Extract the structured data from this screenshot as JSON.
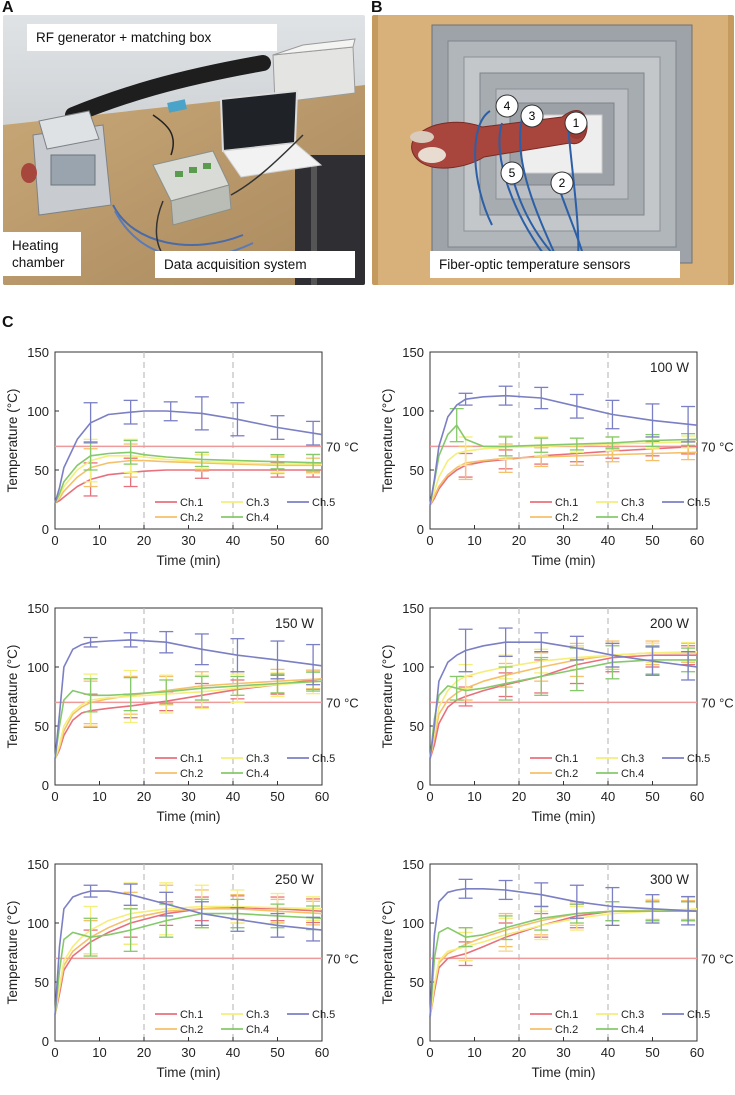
{
  "panels": {
    "a": {
      "letter": "A",
      "callouts": {
        "rf": "RF generator + matching box",
        "chamber": "Heating\nchamber",
        "daq": "Data acquisition system"
      }
    },
    "b": {
      "letter": "B",
      "callouts": {
        "sensors": "Fiber-optic temperature sensors"
      },
      "sensor_numbers": [
        "1",
        "2",
        "3",
        "4",
        "5"
      ]
    },
    "c": {
      "letter": "C"
    }
  },
  "colors": {
    "Ch.1": "#e8707c",
    "Ch.2": "#f5c06a",
    "Ch.3": "#f4ee7a",
    "Ch.4": "#86c96b",
    "Ch.5": "#7b7fc4",
    "threshold": "#ee9a9a",
    "divider": "#bdbdbd"
  },
  "chart_data": [
    {
      "type": "line",
      "title": "",
      "xlabel": "Time (min)",
      "ylabel": "Temperature (°C)",
      "xlim": [
        0,
        60
      ],
      "ylim": [
        0,
        150
      ],
      "xticks": [
        "0",
        "10",
        "20",
        "30",
        "40",
        "50",
        "60"
      ],
      "yticks": [
        "0",
        "50",
        "100",
        "150"
      ],
      "threshold": {
        "value": 70,
        "label": "70 °C"
      },
      "dividers": [
        20,
        40
      ],
      "legend": [
        "Ch.1",
        "Ch.2",
        "Ch.3",
        "Ch.4",
        "Ch.5"
      ],
      "x": [
        0,
        1,
        2,
        5,
        8,
        12,
        17,
        20,
        25,
        33,
        41,
        50,
        60
      ],
      "series": [
        {
          "name": "Ch.1",
          "values": [
            22,
            24,
            27,
            36,
            42,
            46,
            48,
            49,
            50,
            50,
            50,
            50,
            50
          ],
          "errors": {
            "8": 14,
            "17": 12,
            "33": 7,
            "50": 6,
            "58": 6
          }
        },
        {
          "name": "Ch.2",
          "values": [
            22,
            26,
            32,
            44,
            52,
            56,
            58,
            58,
            57,
            56,
            55,
            54,
            54
          ],
          "errors": {
            "8": 16,
            "17": 14,
            "33": 7,
            "50": 7,
            "58": 6
          }
        },
        {
          "name": "Ch.3",
          "values": [
            22,
            28,
            36,
            50,
            58,
            62,
            62,
            61,
            59,
            57,
            56,
            55,
            55
          ],
          "errors": {
            "8": 18,
            "17": 14,
            "33": 6,
            "50": 7,
            "58": 8
          }
        },
        {
          "name": "Ch.4",
          "values": [
            22,
            30,
            40,
            54,
            62,
            64,
            65,
            63,
            61,
            59,
            58,
            57,
            56
          ],
          "errors": {
            "8": 12,
            "17": 10,
            "33": 6,
            "50": 6,
            "58": 7
          }
        },
        {
          "name": "Ch.5",
          "values": [
            22,
            35,
            52,
            76,
            90,
            97,
            99,
            100,
            100,
            98,
            93,
            86,
            80
          ],
          "errors": {
            "8": 17,
            "17": 10,
            "26": 8,
            "33": 14,
            "41": 14,
            "50": 10,
            "58": 10
          }
        }
      ]
    },
    {
      "type": "line",
      "title": "100 W",
      "xlabel": "Time (min)",
      "ylabel": "Temperature (°C)",
      "xlim": [
        0,
        60
      ],
      "ylim": [
        0,
        150
      ],
      "xticks": [
        "0",
        "10",
        "20",
        "30",
        "40",
        "50",
        "60"
      ],
      "yticks": [
        "0",
        "50",
        "100",
        "150"
      ],
      "threshold": {
        "value": 70,
        "label": "70 °C"
      },
      "dividers": [
        20,
        40
      ],
      "legend": [
        "Ch.1",
        "Ch.2",
        "Ch.3",
        "Ch.4",
        "Ch.5"
      ],
      "x": [
        0,
        1,
        2,
        4,
        6,
        8,
        12,
        17,
        25,
        33,
        41,
        50,
        60
      ],
      "series": [
        {
          "name": "Ch.1",
          "values": [
            20,
            26,
            34,
            44,
            50,
            54,
            57,
            59,
            62,
            64,
            66,
            68,
            70
          ],
          "errors": {
            "8": 10,
            "17": 8,
            "25": 7,
            "33": 7,
            "41": 6,
            "50": 6,
            "58": 6
          }
        },
        {
          "name": "Ch.2",
          "values": [
            20,
            28,
            36,
            46,
            52,
            56,
            58,
            60,
            61,
            62,
            63,
            64,
            65
          ],
          "errors": {
            "8": 14,
            "17": 12,
            "25": 8,
            "33": 8,
            "41": 6,
            "50": 6,
            "58": 6
          }
        },
        {
          "name": "Ch.3",
          "values": [
            20,
            32,
            44,
            58,
            64,
            66,
            68,
            69,
            70,
            71,
            72,
            73,
            74
          ],
          "errors": {
            "8": 12,
            "17": 10,
            "25": 8,
            "33": 6,
            "41": 6,
            "50": 5,
            "58": 5
          }
        },
        {
          "name": "Ch.4",
          "values": [
            20,
            40,
            62,
            80,
            88,
            76,
            70,
            70,
            71,
            72,
            73,
            75,
            76
          ],
          "errors": {
            "6": 14,
            "17": 8,
            "25": 6,
            "33": 5,
            "41": 5,
            "50": 5,
            "58": 5
          }
        },
        {
          "name": "Ch.5",
          "values": [
            20,
            42,
            70,
            95,
            105,
            110,
            112,
            113,
            111,
            104,
            97,
            92,
            88
          ],
          "errors": {
            "8": 5,
            "17": 8,
            "25": 9,
            "33": 10,
            "41": 12,
            "50": 14,
            "58": 15
          }
        }
      ]
    },
    {
      "type": "line",
      "title": "150 W",
      "xlabel": "Time (min)",
      "ylabel": "Temperature (°C)",
      "xlim": [
        0,
        60
      ],
      "ylim": [
        0,
        150
      ],
      "xticks": [
        "0",
        "10",
        "20",
        "30",
        "40",
        "50",
        "60"
      ],
      "yticks": [
        "0",
        "50",
        "100",
        "150"
      ],
      "threshold": {
        "value": 70,
        "label": "70 °C"
      },
      "dividers": [
        20,
        40
      ],
      "legend": [
        "Ch.1",
        "Ch.2",
        "Ch.3",
        "Ch.4",
        "Ch.5"
      ],
      "x": [
        0,
        1,
        2,
        4,
        6,
        8,
        12,
        17,
        25,
        33,
        41,
        50,
        60
      ],
      "series": [
        {
          "name": "Ch.1",
          "values": [
            22,
            30,
            42,
            55,
            61,
            63,
            65,
            67,
            71,
            76,
            81,
            85,
            90
          ],
          "errors": {
            "8": 14,
            "17": 10,
            "25": 8,
            "33": 10,
            "41": 8,
            "50": 8,
            "58": 8
          }
        },
        {
          "name": "Ch.2",
          "values": [
            22,
            32,
            46,
            60,
            66,
            70,
            73,
            76,
            80,
            84,
            86,
            88,
            90
          ],
          "errors": {
            "8": 18,
            "17": 16,
            "25": 12,
            "33": 12,
            "41": 10,
            "50": 10,
            "58": 8
          }
        },
        {
          "name": "Ch.3",
          "values": [
            22,
            34,
            50,
            62,
            68,
            72,
            74,
            75,
            77,
            79,
            82,
            85,
            88
          ],
          "errors": {
            "8": 22,
            "17": 22,
            "25": 16,
            "33": 14,
            "41": 12,
            "50": 10,
            "58": 10
          }
        },
        {
          "name": "Ch.4",
          "values": [
            22,
            50,
            72,
            80,
            78,
            76,
            76,
            77,
            79,
            82,
            84,
            86,
            88
          ],
          "errors": {
            "8": 14,
            "17": 14,
            "25": 10,
            "33": 10,
            "41": 8,
            "50": 8,
            "58": 8
          }
        },
        {
          "name": "Ch.5",
          "values": [
            22,
            60,
            100,
            115,
            119,
            121,
            122,
            123,
            121,
            115,
            110,
            106,
            101
          ],
          "errors": {
            "8": 4,
            "17": 6,
            "25": 9,
            "33": 13,
            "41": 14,
            "50": 16,
            "58": 17
          }
        }
      ]
    },
    {
      "type": "line",
      "title": "200 W",
      "xlabel": "Time (min)",
      "ylabel": "Temperature (°C)",
      "xlim": [
        0,
        60
      ],
      "ylim": [
        0,
        150
      ],
      "xticks": [
        "0",
        "10",
        "20",
        "30",
        "40",
        "50",
        "60"
      ],
      "yticks": [
        "0",
        "50",
        "100",
        "150"
      ],
      "threshold": {
        "value": 70,
        "label": "70 °C"
      },
      "dividers": [
        20,
        40
      ],
      "legend": [
        "Ch.1",
        "Ch.2",
        "Ch.3",
        "Ch.4",
        "Ch.5"
      ],
      "x": [
        0,
        1,
        2,
        4,
        6,
        8,
        12,
        17,
        25,
        33,
        41,
        50,
        60
      ],
      "series": [
        {
          "name": "Ch.1",
          "values": [
            22,
            34,
            52,
            66,
            72,
            75,
            80,
            85,
            92,
            102,
            108,
            110,
            110
          ],
          "errors": {
            "8": 8,
            "17": 10,
            "25": 14,
            "33": 16,
            "41": 12,
            "50": 10,
            "58": 8
          }
        },
        {
          "name": "Ch.2",
          "values": [
            22,
            40,
            60,
            72,
            78,
            82,
            88,
            93,
            100,
            106,
            110,
            112,
            112
          ],
          "errors": {
            "8": 10,
            "17": 10,
            "25": 12,
            "33": 14,
            "41": 12,
            "50": 10,
            "58": 8
          }
        },
        {
          "name": "Ch.3",
          "values": [
            22,
            44,
            66,
            80,
            88,
            92,
            96,
            100,
            105,
            108,
            110,
            112,
            113
          ],
          "errors": {
            "8": 10,
            "17": 10,
            "25": 10,
            "33": 10,
            "41": 10,
            "50": 8,
            "58": 8
          }
        },
        {
          "name": "Ch.4",
          "values": [
            22,
            56,
            76,
            84,
            82,
            80,
            82,
            86,
            92,
            98,
            104,
            106,
            106
          ],
          "errors": {
            "6": 10,
            "17": 14,
            "25": 16,
            "33": 18,
            "41": 14,
            "50": 12,
            "58": 10
          }
        },
        {
          "name": "Ch.5",
          "values": [
            22,
            50,
            88,
            104,
            110,
            114,
            118,
            121,
            121,
            116,
            110,
            105,
            100
          ],
          "errors": {
            "8": 18,
            "17": 12,
            "25": 8,
            "33": 10,
            "41": 10,
            "50": 12,
            "58": 12
          }
        }
      ]
    },
    {
      "type": "line",
      "title": "250 W",
      "xlabel": "Time (min)",
      "ylabel": "Temperature (°C)",
      "xlim": [
        0,
        60
      ],
      "ylim": [
        0,
        150
      ],
      "xticks": [
        "0",
        "10",
        "20",
        "30",
        "40",
        "50",
        "60"
      ],
      "yticks": [
        "0",
        "50",
        "100",
        "150"
      ],
      "threshold": {
        "value": 70,
        "label": "70 °C"
      },
      "dividers": [
        20,
        40
      ],
      "legend": [
        "Ch.1",
        "Ch.2",
        "Ch.3",
        "Ch.4",
        "Ch.5"
      ],
      "x": [
        0,
        1,
        2,
        4,
        6,
        8,
        12,
        17,
        25,
        33,
        41,
        50,
        60
      ],
      "series": [
        {
          "name": "Ch.1",
          "values": [
            22,
            40,
            60,
            72,
            78,
            84,
            92,
            100,
            108,
            112,
            113,
            112,
            110
          ],
          "errors": {
            "8": 10,
            "17": 12,
            "25": 10,
            "33": 10,
            "41": 10,
            "50": 10,
            "58": 10
          }
        },
        {
          "name": "Ch.2",
          "values": [
            22,
            44,
            64,
            76,
            82,
            88,
            96,
            104,
            110,
            112,
            112,
            110,
            108
          ],
          "errors": {
            "8": 14,
            "17": 22,
            "25": 22,
            "33": 16,
            "41": 12,
            "50": 10,
            "58": 10
          }
        },
        {
          "name": "Ch.3",
          "values": [
            22,
            46,
            68,
            80,
            88,
            94,
            102,
            108,
            112,
            114,
            114,
            113,
            112
          ],
          "errors": {
            "8": 20,
            "17": 26,
            "25": 22,
            "33": 18,
            "41": 14,
            "50": 12,
            "58": 10
          }
        },
        {
          "name": "Ch.4",
          "values": [
            22,
            60,
            86,
            92,
            90,
            88,
            90,
            94,
            102,
            108,
            108,
            106,
            104
          ],
          "errors": {
            "8": 16,
            "17": 18,
            "25": 14,
            "33": 12,
            "41": 12,
            "50": 10,
            "58": 10
          }
        },
        {
          "name": "Ch.5",
          "values": [
            22,
            80,
            112,
            122,
            125,
            127,
            127,
            124,
            116,
            108,
            103,
            98,
            94
          ],
          "errors": {
            "8": 5,
            "17": 9,
            "25": 10,
            "33": 10,
            "41": 10,
            "50": 10,
            "58": 10
          }
        }
      ]
    },
    {
      "type": "line",
      "title": "300 W",
      "xlabel": "Time (min)",
      "ylabel": "Temperature (°C)",
      "xlim": [
        0,
        60
      ],
      "ylim": [
        0,
        150
      ],
      "xticks": [
        "0",
        "10",
        "20",
        "30",
        "40",
        "50",
        "60"
      ],
      "yticks": [
        "0",
        "50",
        "100",
        "150"
      ],
      "threshold": {
        "value": 70,
        "label": "70 °C"
      },
      "dividers": [
        20,
        40
      ],
      "legend": [
        "Ch.1",
        "Ch.2",
        "Ch.3",
        "Ch.4",
        "Ch.5"
      ],
      "x": [
        0,
        1,
        2,
        4,
        6,
        8,
        12,
        17,
        25,
        33,
        41,
        50,
        60
      ],
      "series": [
        {
          "name": "Ch.1",
          "values": [
            20,
            42,
            62,
            70,
            72,
            74,
            80,
            88,
            98,
            106,
            110,
            110,
            110
          ],
          "errors": {
            "8": 10,
            "17": 12,
            "25": 10,
            "33": 10,
            "41": 8,
            "50": 8,
            "58": 8
          }
        },
        {
          "name": "Ch.2",
          "values": [
            20,
            46,
            66,
            74,
            78,
            82,
            88,
            94,
            102,
            108,
            110,
            111,
            111
          ],
          "errors": {
            "8": 14,
            "17": 14,
            "25": 12,
            "33": 10,
            "41": 8,
            "50": 8,
            "58": 8
          }
        },
        {
          "name": "Ch.3",
          "values": [
            20,
            48,
            68,
            76,
            78,
            80,
            84,
            90,
            98,
            104,
            108,
            110,
            112
          ],
          "errors": {
            "8": 12,
            "17": 14,
            "25": 12,
            "33": 10,
            "41": 10,
            "50": 10,
            "58": 10
          }
        },
        {
          "name": "Ch.4",
          "values": [
            20,
            70,
            92,
            96,
            92,
            88,
            90,
            96,
            104,
            108,
            110,
            110,
            110
          ],
          "errors": {
            "8": 8,
            "17": 10,
            "25": 10,
            "33": 8,
            "41": 8,
            "50": 8,
            "58": 8
          }
        },
        {
          "name": "Ch.5",
          "values": [
            20,
            90,
            118,
            126,
            128,
            129,
            129,
            128,
            124,
            118,
            114,
            112,
            110
          ],
          "errors": {
            "8": 8,
            "17": 8,
            "25": 10,
            "33": 14,
            "41": 16,
            "50": 12,
            "58": 12
          }
        }
      ]
    }
  ]
}
